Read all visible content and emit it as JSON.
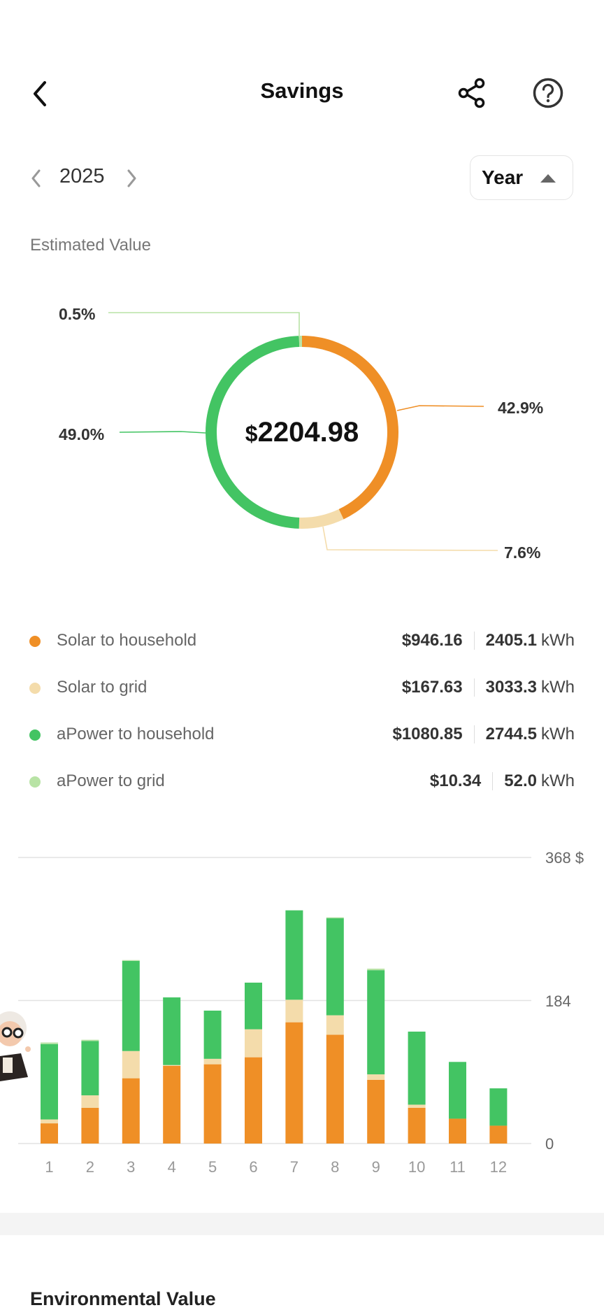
{
  "header": {
    "title": "Savings"
  },
  "period": {
    "year": "2025",
    "mode": "Year"
  },
  "section_label": "Estimated Value",
  "total": {
    "currency": "$",
    "amount": "2204.98"
  },
  "legend": [
    {
      "label": "Solar to household",
      "money": "$946.16",
      "energy": "2405.1",
      "unit": "kWh",
      "color": "#EF8F26"
    },
    {
      "label": "Solar to grid",
      "money": "$167.63",
      "energy": "3033.3",
      "unit": "kWh",
      "color": "#F4DCAB"
    },
    {
      "label": "aPower to household",
      "money": "$1080.85",
      "energy": "2744.5",
      "unit": "kWh",
      "color": "#43C463"
    },
    {
      "label": "aPower to grid",
      "money": "$10.34",
      "energy": "52.0",
      "unit": "kWh",
      "color": "#B8E3A5"
    }
  ],
  "chart_data": [
    {
      "type": "pie",
      "title": "Estimated Value",
      "categories": [
        "Solar to household",
        "Solar to grid",
        "aPower to household",
        "aPower to grid"
      ],
      "values": [
        42.9,
        7.6,
        49.0,
        0.5
      ],
      "labels": [
        "42.9%",
        "7.6%",
        "49.0%",
        "0.5%"
      ],
      "colors": [
        "#EF8F26",
        "#F4DCAB",
        "#43C463",
        "#B8E3A5"
      ]
    },
    {
      "type": "bar",
      "stacked": true,
      "categories": [
        "1",
        "2",
        "3",
        "4",
        "5",
        "6",
        "7",
        "8",
        "9",
        "10",
        "11",
        "12"
      ],
      "series": [
        {
          "name": "Solar to household",
          "color": "#EF8F26",
          "values": [
            26,
            46,
            84,
            100,
            102,
            111,
            156,
            140,
            82,
            46,
            32,
            23
          ]
        },
        {
          "name": "Solar to grid",
          "color": "#F4DCAB",
          "values": [
            5,
            16,
            35,
            1,
            7,
            36,
            29,
            25,
            7,
            4,
            0,
            0
          ]
        },
        {
          "name": "aPower to household",
          "color": "#43C463",
          "values": [
            97,
            70,
            116,
            87,
            62,
            60,
            115,
            125,
            134,
            94,
            73,
            48
          ]
        },
        {
          "name": "aPower to grid",
          "color": "#B8E3A5",
          "values": [
            2,
            1.5,
            1,
            0,
            0,
            0,
            0,
            1,
            2,
            0,
            0,
            0
          ]
        }
      ],
      "yticks": [
        "0",
        "184",
        "368 $"
      ],
      "ytick_values": [
        0,
        184,
        368
      ],
      "ylim": [
        0,
        368
      ],
      "grid": true
    }
  ],
  "next_section": "Environmental Value"
}
